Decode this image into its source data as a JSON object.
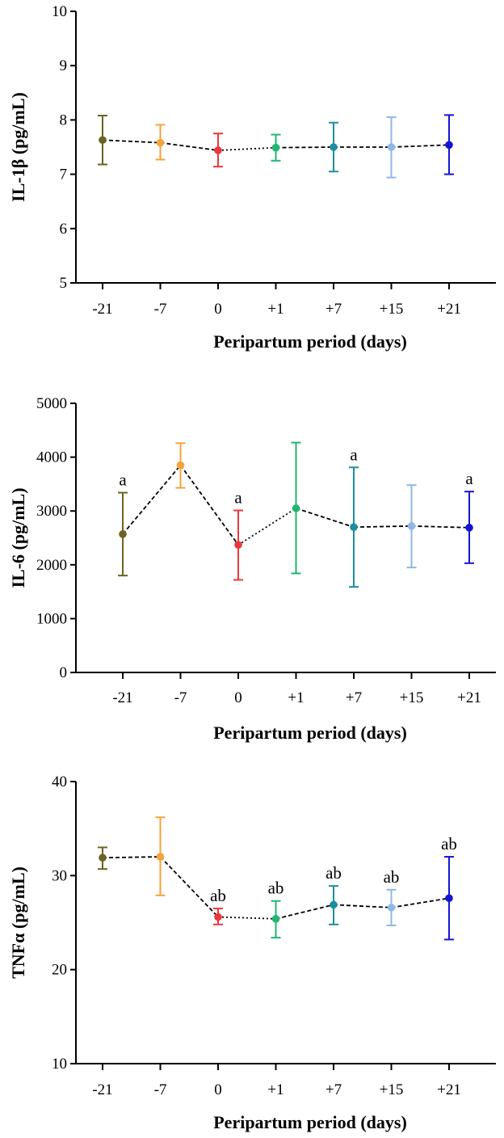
{
  "chart_data": [
    {
      "type": "line",
      "ylabel": "IL-1β (pg/mL)",
      "xlabel": "Peripartum period (days)",
      "categories": [
        "-21",
        "-7",
        "0",
        "+1",
        "+7",
        "+15",
        "+21"
      ],
      "ylim": [
        5,
        10
      ],
      "yticks": [
        5,
        6,
        7,
        8,
        9,
        10
      ],
      "yticklabels": [
        "5",
        "6",
        "7",
        "8",
        "9",
        "10"
      ],
      "values": [
        7.63,
        7.58,
        7.44,
        7.49,
        7.5,
        7.5,
        7.54
      ],
      "err_low": [
        7.18,
        7.27,
        7.14,
        7.25,
        7.05,
        6.94,
        7.0
      ],
      "err_high": [
        8.08,
        7.91,
        7.75,
        7.73,
        7.95,
        8.05,
        8.09
      ],
      "annotations": [
        "",
        "",
        "",
        "",
        "",
        "",
        ""
      ],
      "grid": false
    },
    {
      "type": "line",
      "ylabel": "IL-6 (pg/mL)",
      "xlabel": "Peripartum period (days)",
      "categories": [
        "-21",
        "-7",
        "0",
        "+1",
        "+7",
        "+15",
        "+21"
      ],
      "ylim": [
        0,
        5000
      ],
      "yticks": [
        0,
        1000,
        2000,
        3000,
        4000,
        5000
      ],
      "yticklabels": [
        "0",
        "1000",
        "2000",
        "3000",
        "4000",
        "5000"
      ],
      "values": [
        2570,
        3850,
        2370,
        3050,
        2700,
        2720,
        2690
      ],
      "err_low": [
        1800,
        3430,
        1720,
        1840,
        1590,
        1950,
        2030
      ],
      "err_high": [
        3340,
        4260,
        3010,
        4270,
        3810,
        3480,
        3360
      ],
      "annotations": [
        "a",
        "",
        "a",
        "",
        "a",
        "",
        "a"
      ],
      "grid": false
    },
    {
      "type": "line",
      "ylabel": "TNFα (pg/mL)",
      "xlabel": "Peripartum period (days)",
      "categories": [
        "-21",
        "-7",
        "0",
        "+1",
        "+7",
        "+15",
        "+21"
      ],
      "ylim": [
        10,
        40
      ],
      "yticks": [
        10,
        20,
        30,
        40
      ],
      "yticklabels": [
        "10",
        "20",
        "30",
        "40"
      ],
      "values": [
        31.9,
        32.0,
        25.6,
        25.4,
        26.9,
        26.6,
        27.6
      ],
      "err_low": [
        30.7,
        27.9,
        24.8,
        23.4,
        24.8,
        24.7,
        23.2
      ],
      "err_high": [
        33.0,
        36.2,
        26.5,
        27.3,
        28.9,
        28.5,
        32.0
      ],
      "annotations": [
        "",
        "",
        "ab",
        "ab",
        "ab",
        "ab",
        "ab"
      ],
      "grid": false
    }
  ],
  "point_colors": [
    "#6b6324",
    "#f5a33a",
    "#e8383d",
    "#22b573",
    "#1c8fa0",
    "#8fb8e6",
    "#1414d4"
  ],
  "line_color": "#000000"
}
